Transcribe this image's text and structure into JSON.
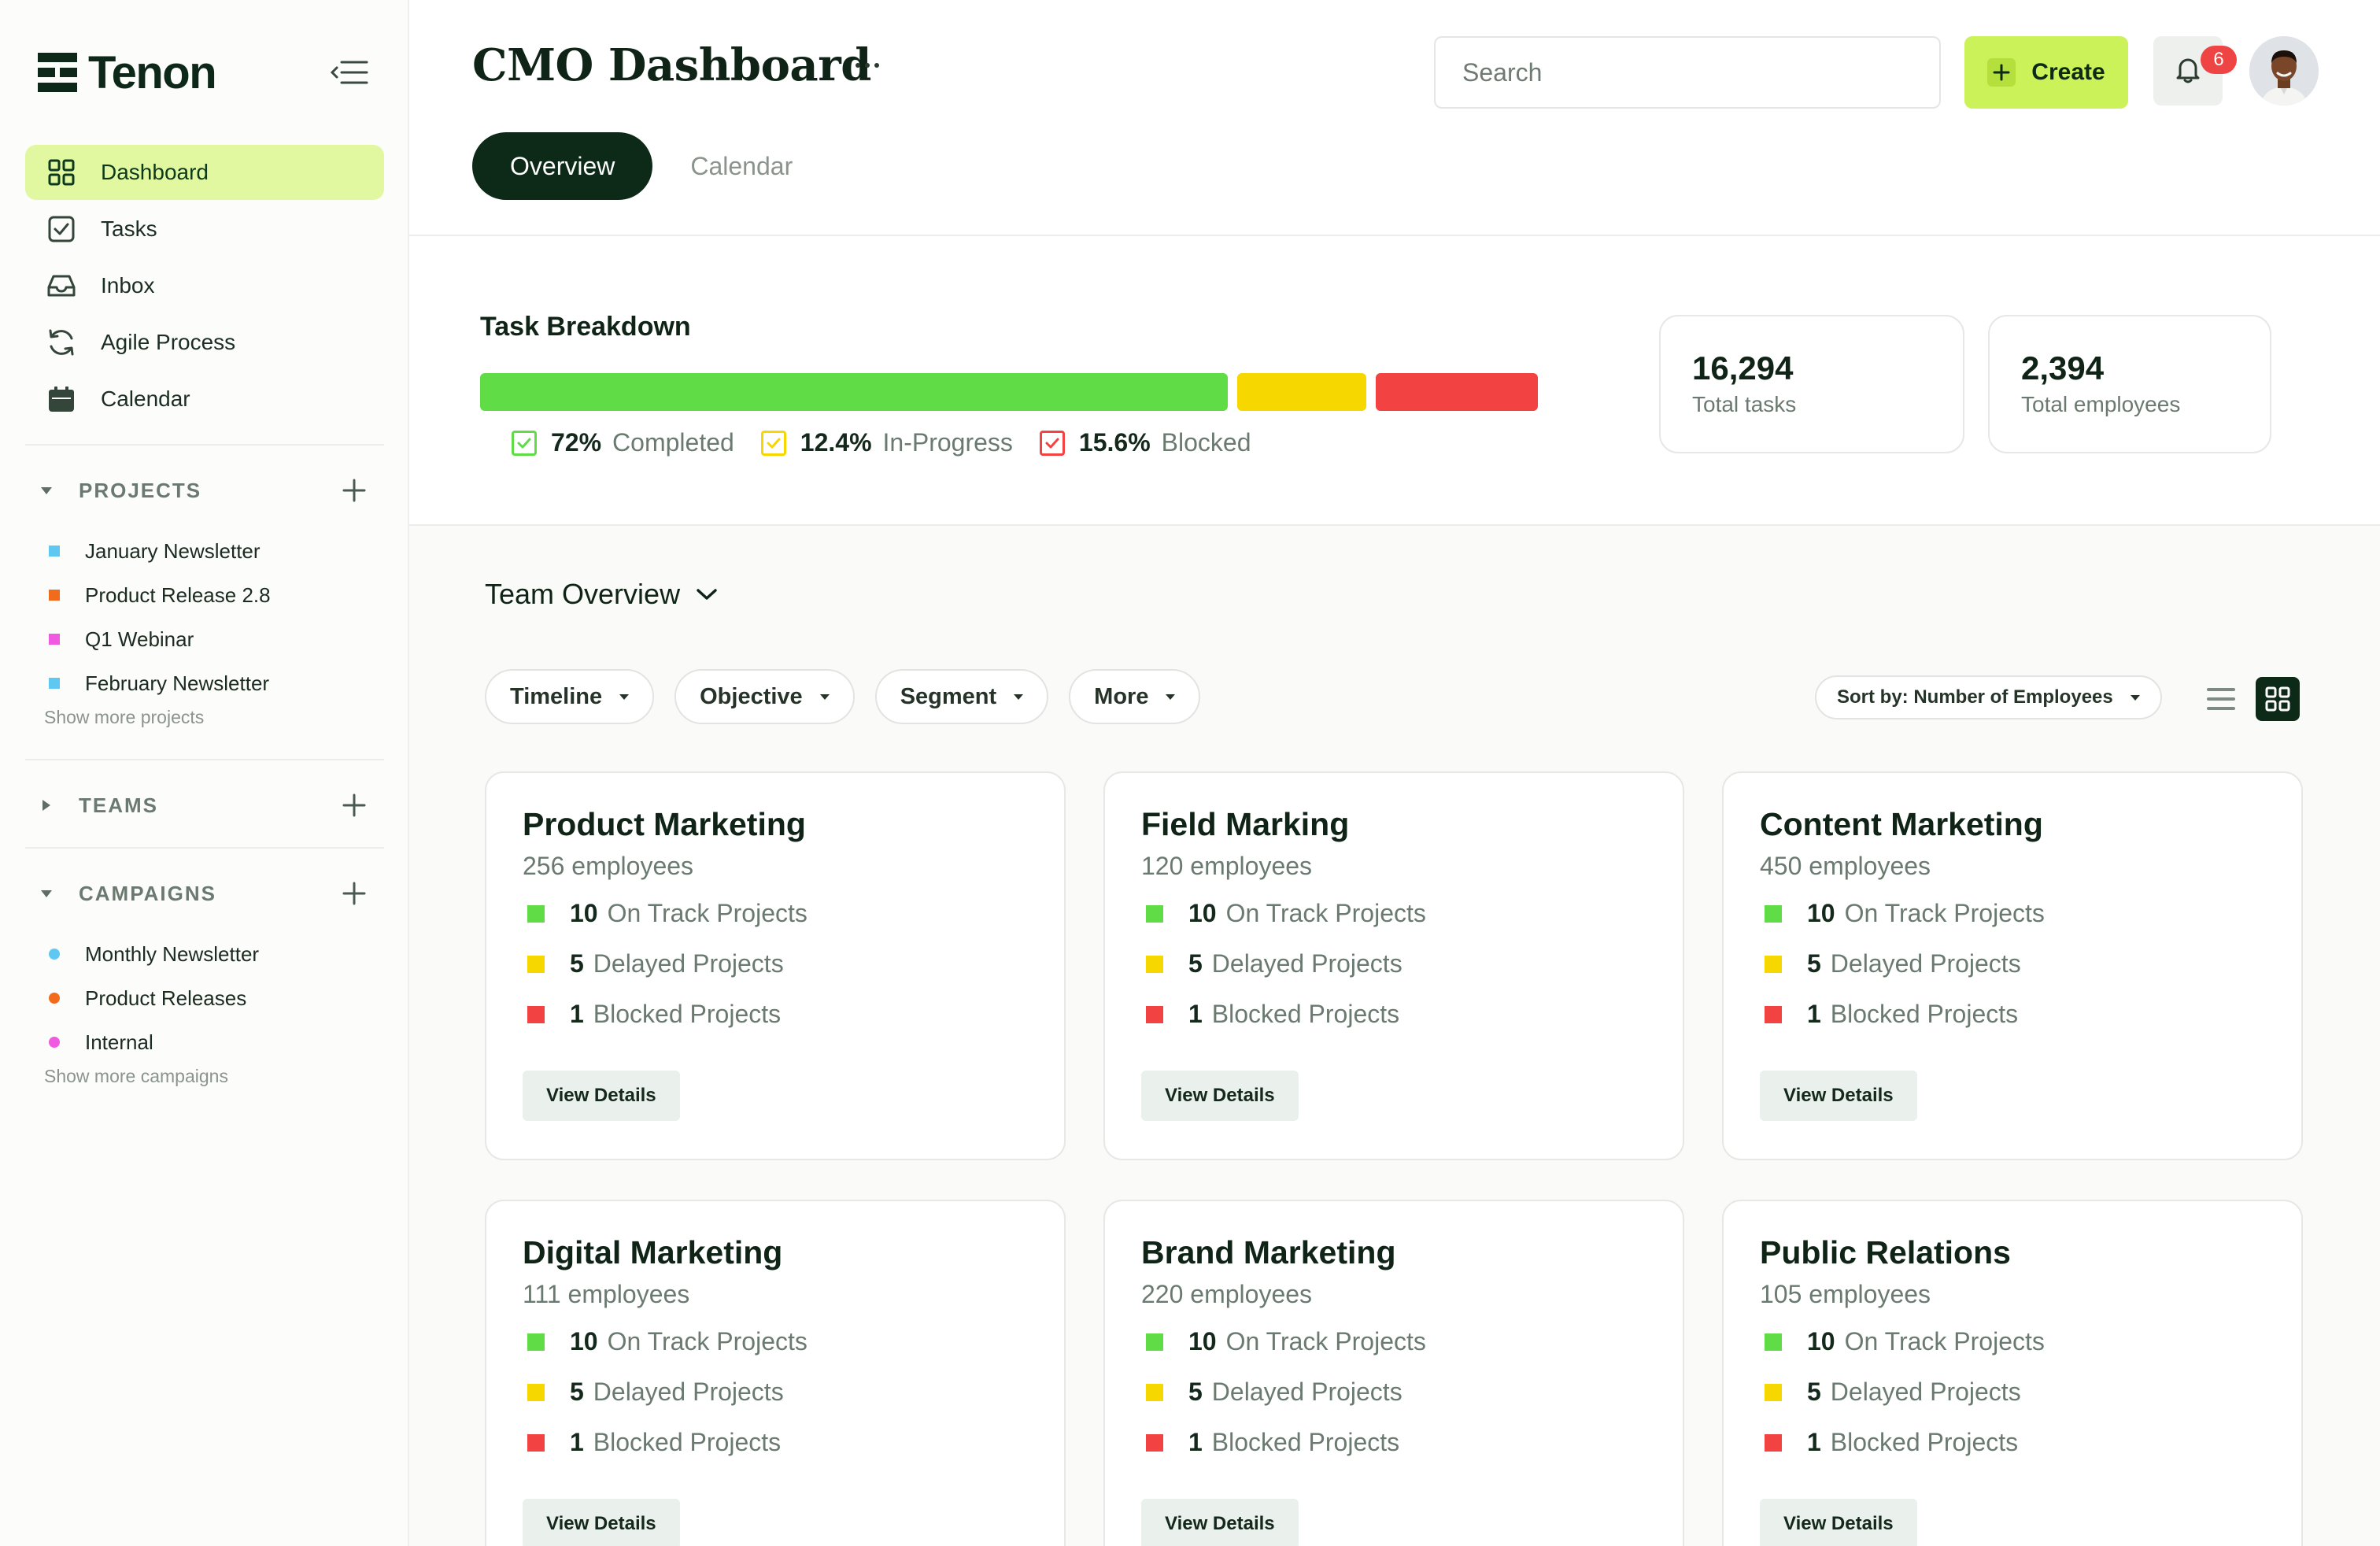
{
  "brand": {
    "name": "Tenon"
  },
  "sidebar": {
    "nav": [
      {
        "label": "Dashboard",
        "icon": "grid-icon",
        "active": true
      },
      {
        "label": "Tasks",
        "icon": "checkbox-icon"
      },
      {
        "label": "Inbox",
        "icon": "inbox-icon"
      },
      {
        "label": "Agile Process",
        "icon": "refresh-icon"
      },
      {
        "label": "Calendar",
        "icon": "calendar-icon"
      }
    ],
    "projects": {
      "title": "PROJECTS",
      "items": [
        {
          "label": "January Newsletter",
          "color": "#5ec8f2"
        },
        {
          "label": "Product Release 2.8",
          "color": "#f26b1d"
        },
        {
          "label": "Q1 Webinar",
          "color": "#f05ae0"
        },
        {
          "label": "February Newsletter",
          "color": "#5ec8f2"
        }
      ],
      "show_more": "Show more projects"
    },
    "teams": {
      "title": "TEAMS"
    },
    "campaigns": {
      "title": "CAMPAIGNS",
      "items": [
        {
          "label": "Monthly Newsletter",
          "color": "#5ec8f2"
        },
        {
          "label": "Product Releases",
          "color": "#f26b1d"
        },
        {
          "label": "Internal",
          "color": "#f05ae0"
        }
      ],
      "show_more": "Show more campaigns"
    }
  },
  "header": {
    "title": "CMO Dashboard",
    "tabs": [
      {
        "label": "Overview",
        "active": true
      },
      {
        "label": "Calendar"
      }
    ],
    "search_placeholder": "Search",
    "create_label": "Create",
    "notifications": "6"
  },
  "breakdown": {
    "title": "Task Breakdown",
    "segments": [
      {
        "pct": "72%",
        "label": "Completed",
        "value": 72,
        "color": "#5fdc46"
      },
      {
        "pct": "12.4%",
        "label": "In-Progress",
        "value": 12.4,
        "color": "#f6d700"
      },
      {
        "pct": "15.6%",
        "label": "Blocked",
        "value": 15.6,
        "color": "#f24242"
      }
    ],
    "stats": [
      {
        "value": "16,294",
        "caption": "Total tasks"
      },
      {
        "value": "2,394",
        "caption": "Total employees"
      }
    ]
  },
  "team_overview": {
    "title": "Team Overview",
    "filters": [
      "Timeline",
      "Objective",
      "Segment",
      "More"
    ],
    "sort_label": "Sort by: Number of Employees",
    "view_details": "View Details",
    "row_labels": [
      "On Track Projects",
      "Delayed Projects",
      "Blocked Projects"
    ],
    "status_colors": [
      "#5fdc46",
      "#f6d700",
      "#f24242"
    ],
    "teams": [
      {
        "name": "Product Marketing",
        "employees": "256 employees",
        "counts": [
          "10",
          "5",
          "1"
        ]
      },
      {
        "name": "Field Marking",
        "employees": "120 employees",
        "counts": [
          "10",
          "5",
          "1"
        ]
      },
      {
        "name": "Content Marketing",
        "employees": "450 employees",
        "counts": [
          "10",
          "5",
          "1"
        ]
      },
      {
        "name": "Digital Marketing",
        "employees": "111 employees",
        "counts": [
          "10",
          "5",
          "1"
        ]
      },
      {
        "name": "Brand Marketing",
        "employees": "220 employees",
        "counts": [
          "10",
          "5",
          "1"
        ]
      },
      {
        "name": "Public Relations",
        "employees": "105 employees",
        "counts": [
          "10",
          "5",
          "1"
        ]
      }
    ]
  }
}
